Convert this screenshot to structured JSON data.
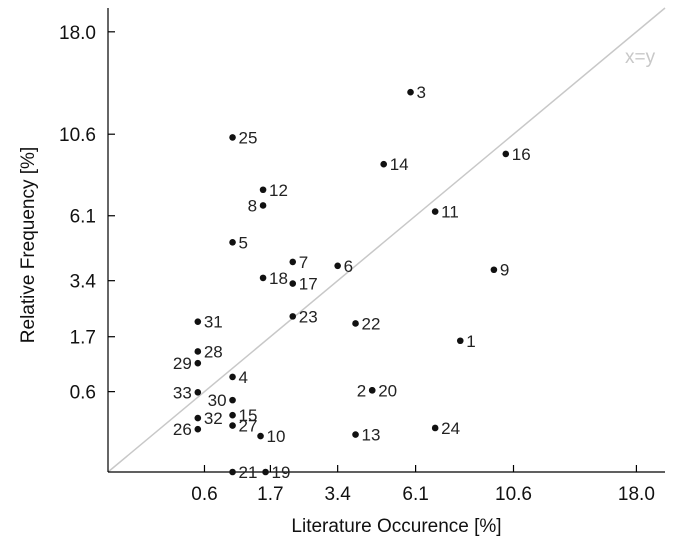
{
  "chart_data": {
    "type": "scatter",
    "xlabel": "Literature Occurence [%]",
    "ylabel": "Relative Frequency [%]",
    "scale": "sqrt",
    "xlim": [
      0,
      20
    ],
    "ylim": [
      0,
      20
    ],
    "xticks": [
      0.6,
      1.7,
      3.4,
      6.1,
      10.6,
      18.0
    ],
    "xtick_labels": [
      "0.6",
      "1.7",
      "3.4",
      "6.1",
      "10.6",
      "18.0"
    ],
    "yticks": [
      0.6,
      1.7,
      3.4,
      6.1,
      10.6,
      18.0
    ],
    "ytick_labels": [
      "0.6",
      "1.7",
      "3.4",
      "6.1",
      "10.6",
      "18.0"
    ],
    "reference_line": {
      "label": "x=y",
      "color": "#c8c8c8"
    },
    "point_color": "#111111",
    "points": [
      {
        "label": "1",
        "x": 8.0,
        "y": 1.6,
        "side": "right"
      },
      {
        "label": "2",
        "x": 4.5,
        "y": 0.62,
        "side": "left"
      },
      {
        "label": "3",
        "x": 5.9,
        "y": 13.4,
        "side": "right"
      },
      {
        "label": "4",
        "x": 1.0,
        "y": 0.84,
        "side": "right"
      },
      {
        "label": "5",
        "x": 1.0,
        "y": 4.9,
        "side": "right"
      },
      {
        "label": "6",
        "x": 3.4,
        "y": 3.95,
        "side": "right"
      },
      {
        "label": "7",
        "x": 2.2,
        "y": 4.1,
        "side": "right"
      },
      {
        "label": "8",
        "x": 1.55,
        "y": 6.6,
        "side": "left"
      },
      {
        "label": "9",
        "x": 9.6,
        "y": 3.8,
        "side": "right"
      },
      {
        "label": "10",
        "x": 1.5,
        "y": 0.12,
        "side": "right"
      },
      {
        "label": "11",
        "x": 6.9,
        "y": 6.3,
        "side": "right"
      },
      {
        "label": "12",
        "x": 1.55,
        "y": 7.4,
        "side": "right"
      },
      {
        "label": "13",
        "x": 3.95,
        "y": 0.13,
        "side": "right"
      },
      {
        "label": "14",
        "x": 4.9,
        "y": 8.8,
        "side": "right"
      },
      {
        "label": "15",
        "x": 1.0,
        "y": 0.3,
        "side": "right"
      },
      {
        "label": "16",
        "x": 10.2,
        "y": 9.4,
        "side": "right"
      },
      {
        "label": "17",
        "x": 2.2,
        "y": 3.3,
        "side": "right"
      },
      {
        "label": "18",
        "x": 1.55,
        "y": 3.5,
        "side": "right"
      },
      {
        "label": "19",
        "x": 1.6,
        "y": 0.0,
        "side": "right"
      },
      {
        "label": "20",
        "x": 4.5,
        "y": 0.62,
        "side": "right"
      },
      {
        "label": "21",
        "x": 1.0,
        "y": 0.0,
        "side": "right"
      },
      {
        "label": "22",
        "x": 3.95,
        "y": 2.05,
        "side": "right"
      },
      {
        "label": "23",
        "x": 2.2,
        "y": 2.25,
        "side": "right"
      },
      {
        "label": "24",
        "x": 6.9,
        "y": 0.18,
        "side": "right"
      },
      {
        "label": "25",
        "x": 1.0,
        "y": 10.4,
        "side": "right"
      },
      {
        "label": "26",
        "x": 0.52,
        "y": 0.17,
        "side": "left"
      },
      {
        "label": "27",
        "x": 1.0,
        "y": 0.2,
        "side": "right"
      },
      {
        "label": "28",
        "x": 0.52,
        "y": 1.35,
        "side": "right"
      },
      {
        "label": "29",
        "x": 0.52,
        "y": 1.1,
        "side": "left"
      },
      {
        "label": "30",
        "x": 1.0,
        "y": 0.48,
        "side": "left"
      },
      {
        "label": "31",
        "x": 0.52,
        "y": 2.1,
        "side": "right"
      },
      {
        "label": "32",
        "x": 0.52,
        "y": 0.27,
        "side": "right"
      },
      {
        "label": "33",
        "x": 0.52,
        "y": 0.59,
        "side": "left"
      }
    ]
  }
}
